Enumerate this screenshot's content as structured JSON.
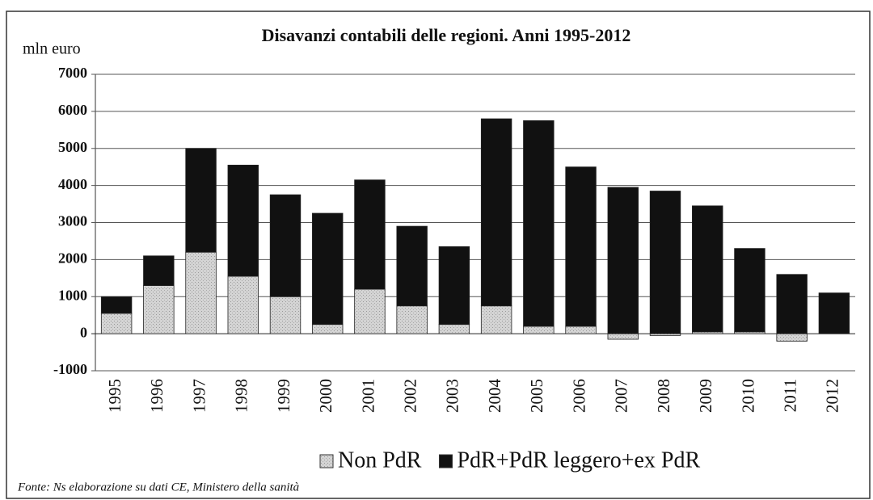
{
  "chart_data": {
    "type": "stacked_bar",
    "title": "Disavanzi contabili delle regioni. Anni 1995-2012",
    "y_label": "mln euro",
    "source": "Fonte: Ns elaborazione su dati  CE, Ministero della sanità",
    "categories": [
      "1995",
      "1996",
      "1997",
      "1998",
      "1999",
      "2000",
      "2001",
      "2002",
      "2003",
      "2004",
      "2005",
      "2006",
      "2007",
      "2008",
      "2009",
      "2010",
      "2011",
      "2012"
    ],
    "series": [
      {
        "name": "Non PdR",
        "color": "#d4d4d4",
        "values": [
          550,
          1300,
          2200,
          1550,
          1000,
          250,
          1200,
          750,
          250,
          750,
          200,
          200,
          -150,
          -50,
          50,
          50,
          -200,
          0
        ]
      },
      {
        "name": "PdR+PdR leggero+ex  PdR",
        "color": "#111111",
        "values": [
          450,
          800,
          2800,
          3000,
          2750,
          3000,
          2950,
          2150,
          2100,
          5050,
          5550,
          4300,
          3950,
          3850,
          3400,
          2250,
          1600,
          1100
        ]
      }
    ],
    "ylim": [
      -1000,
      7000
    ],
    "yticks": [
      -1000,
      0,
      1000,
      2000,
      3000,
      4000,
      5000,
      6000,
      7000
    ],
    "grid": true
  }
}
